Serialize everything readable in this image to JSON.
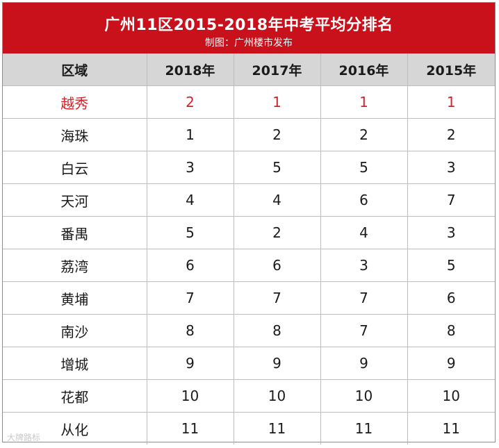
{
  "header": {
    "title": "广州11区2015-2018年中考平均分排名",
    "subtitle": "制图：广州楼市发布"
  },
  "table": {
    "columns": [
      "区域",
      "2018年",
      "2017年",
      "2016年",
      "2015年"
    ],
    "rows": [
      {
        "district": "越秀",
        "values": [
          "2",
          "1",
          "1",
          "1"
        ]
      },
      {
        "district": "海珠",
        "values": [
          "1",
          "2",
          "2",
          "2"
        ]
      },
      {
        "district": "白云",
        "values": [
          "3",
          "5",
          "5",
          "3"
        ]
      },
      {
        "district": "天河",
        "values": [
          "4",
          "4",
          "6",
          "7"
        ]
      },
      {
        "district": "番禺",
        "values": [
          "5",
          "2",
          "4",
          "3"
        ]
      },
      {
        "district": "荔湾",
        "values": [
          "6",
          "6",
          "3",
          "5"
        ]
      },
      {
        "district": "黄埔",
        "values": [
          "7",
          "7",
          "7",
          "6"
        ]
      },
      {
        "district": "南沙",
        "values": [
          "8",
          "8",
          "7",
          "8"
        ]
      },
      {
        "district": "增城",
        "values": [
          "9",
          "9",
          "9",
          "9"
        ]
      },
      {
        "district": "花都",
        "values": [
          "10",
          "10",
          "10",
          "10"
        ]
      },
      {
        "district": "从化",
        "values": [
          "11",
          "11",
          "11",
          "11"
        ]
      }
    ],
    "highlight_color": "#d2232a"
  },
  "colors": {
    "title_bar": "#c8111b",
    "header_row": "#d6d6d6"
  },
  "watermark": "大牌路标"
}
